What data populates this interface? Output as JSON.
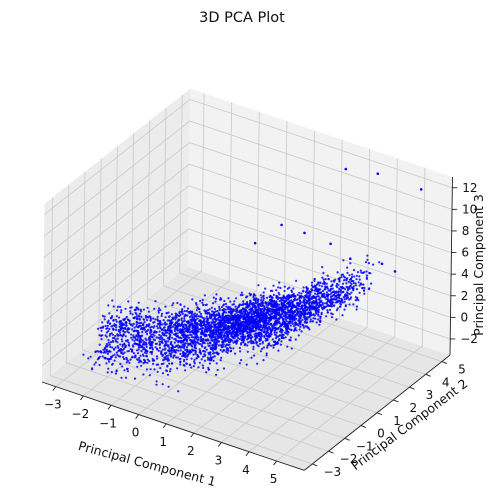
{
  "chart_data": {
    "type": "scatter",
    "projection": "3d",
    "title": "3D PCA Plot",
    "xlabel": "Principal Component 1",
    "ylabel": "Principal Component 2",
    "zlabel": "Principal Component 3",
    "xlim": [
      -3.5,
      6
    ],
    "ylim": [
      -3.5,
      5.5
    ],
    "zlim": [
      -3.5,
      13
    ],
    "x_ticks": [
      "−3",
      "−2",
      "−1",
      "0",
      "1",
      "2",
      "3",
      "4",
      "5"
    ],
    "y_ticks": [
      "−3",
      "−2",
      "−1",
      "0",
      "1",
      "2",
      "3",
      "4",
      "5"
    ],
    "z_ticks": [
      "−2",
      "0",
      "2",
      "4",
      "6",
      "8",
      "10",
      "12"
    ],
    "grid": true,
    "marker_color": "#0000ff",
    "cluster_bands": [
      {
        "x": [
          -3,
          3.5
        ],
        "y": [
          -1.2,
          0.4
        ],
        "z": [
          -1.5,
          3.5
        ],
        "points": 1100
      },
      {
        "x": [
          -1,
          3
        ],
        "y": [
          -0.6,
          1.0
        ],
        "z": [
          -1,
          4.5
        ],
        "points": 700
      },
      {
        "x": [
          0,
          4
        ],
        "y": [
          0.0,
          1.6
        ],
        "z": [
          -1.5,
          5.5
        ],
        "points": 650
      },
      {
        "x": [
          -2.5,
          2
        ],
        "y": [
          -2.5,
          -1.0
        ],
        "z": [
          -2,
          2
        ],
        "points": 500
      },
      {
        "x": [
          0.5,
          4.5
        ],
        "y": [
          1.0,
          2.4
        ],
        "z": [
          -1,
          6
        ],
        "points": 500
      },
      {
        "x": [
          1.5,
          4.5
        ],
        "y": [
          2.0,
          3.5
        ],
        "z": [
          -1.5,
          5
        ],
        "points": 300
      }
    ],
    "outliers": [
      {
        "x": 2.9,
        "y": 4.2,
        "z": 12.6
      },
      {
        "x": 4.0,
        "y": 4.3,
        "z": 13.0
      },
      {
        "x": 5.4,
        "y": 4.6,
        "z": 12.4
      },
      {
        "x": 2.0,
        "y": 1.8,
        "z": 9.5
      },
      {
        "x": 2.6,
        "y": 2.2,
        "z": 8.8
      },
      {
        "x": 3.8,
        "y": 3.0,
        "z": 6.5
      },
      {
        "x": 4.6,
        "y": 3.6,
        "z": 6.0
      },
      {
        "x": 4.9,
        "y": 3.9,
        "z": 5.2
      },
      {
        "x": 3.2,
        "y": 2.8,
        "z": 7.6
      },
      {
        "x": 1.4,
        "y": 1.2,
        "z": 8.0
      }
    ]
  }
}
